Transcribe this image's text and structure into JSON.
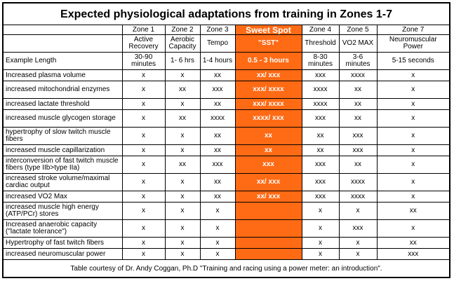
{
  "title": "Expected physiological adaptations from training in Zones 1-7",
  "columns": [
    {
      "zone": "Zone 1",
      "name": "Active Recovery",
      "length": "30-90 minutes"
    },
    {
      "zone": "Zone 2",
      "name": "Aerobic Capacity",
      "length": "1- 6 hrs"
    },
    {
      "zone": "Zone 3",
      "name": "Tempo",
      "length": "1-4 hours"
    },
    {
      "zone": "Sweet Spot",
      "name": "\"SST\"",
      "length": "0.5 - 3 hours"
    },
    {
      "zone": "Zone 4",
      "name": "Threshold",
      "length": "8-30 minutes"
    },
    {
      "zone": "Zone 5",
      "name": "VO2 MAX",
      "length": "3-6 minutes"
    },
    {
      "zone": "Zone 7",
      "name": "Neuromuscular Power",
      "length": "5-15 seconds"
    }
  ],
  "example_length_label": "Example Length",
  "rows": [
    {
      "label": "Increased plasma volume",
      "cells": [
        "x",
        "x",
        "xx",
        "xx/ xxx",
        "xxx",
        "xxxx",
        "x"
      ]
    },
    {
      "label": "increased mitochondrial enzymes",
      "cells": [
        "x",
        "xx",
        "xxx",
        "xxx/ xxxx",
        "xxxx",
        "xx",
        "x"
      ]
    },
    {
      "label": "increased lactate threshold",
      "cells": [
        "x",
        "x",
        "xx",
        "xxx/ xxxx",
        "xxxx",
        "xx",
        "x"
      ]
    },
    {
      "label": "increased muscle glycogen storage",
      "cells": [
        "x",
        "xx",
        "xxxx",
        "xxxx/ xxx",
        "xxx",
        "xx",
        "x"
      ]
    },
    {
      "label": "hypertrophy of slow twitch muscle fibers",
      "cells": [
        "x",
        "x",
        "xx",
        "xx",
        "xx",
        "xxx",
        "x"
      ]
    },
    {
      "label": "increased muscle capillarization",
      "cells": [
        "x",
        "x",
        "xx",
        "xx",
        "xx",
        "xxx",
        "x"
      ]
    },
    {
      "label": "interconversion of fast twitch muscle fibers (type IIb>type IIa)",
      "cells": [
        "x",
        "xx",
        "xxx",
        "xxx",
        "xxx",
        "xx",
        "x"
      ]
    },
    {
      "label": "increased stroke volume/maximal cardiac output",
      "cells": [
        "x",
        "x",
        "xx",
        "xx/ xxx",
        "xxx",
        "xxxx",
        "x"
      ]
    },
    {
      "label": "increased VO2 Max",
      "cells": [
        "x",
        "x",
        "xx",
        "xx/ xxx",
        "xxx",
        "xxxx",
        "x"
      ]
    },
    {
      "label": "increased muscle high energy (ATP/PCr) stores",
      "cells": [
        "x",
        "x",
        "x",
        "",
        "x",
        "x",
        "xx"
      ]
    },
    {
      "label": "Increased anaerobic capacity (\"lactate tolerance\")",
      "cells": [
        "x",
        "x",
        "x",
        "",
        "x",
        "xxx",
        "x"
      ]
    },
    {
      "label": "Hypertrophy of fast twitch fibers",
      "cells": [
        "x",
        "x",
        "x",
        "",
        "x",
        "x",
        "xx"
      ]
    },
    {
      "label": "increased neuromuscular power",
      "cells": [
        "x",
        "x",
        "x",
        "",
        "x",
        "x",
        "xxx"
      ]
    }
  ],
  "footer": "Table courtesy of Dr. Andy Coggan, Ph.D \"Training and racing using a power meter: an introduction\".",
  "colors": {
    "sweet_spot": "#ff6a14",
    "border": "#000000"
  }
}
